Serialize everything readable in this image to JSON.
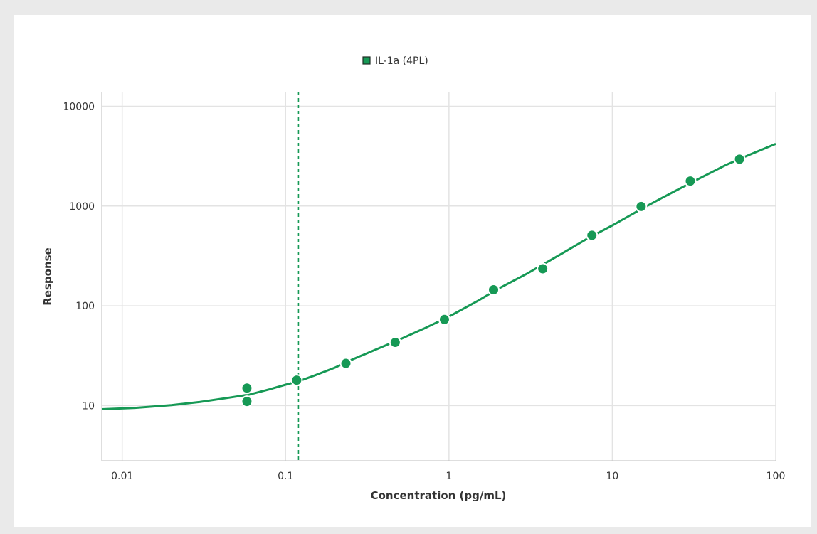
{
  "chart_data": {
    "type": "scatter",
    "legend": {
      "label": "IL-1a (4PL)",
      "position": "top-center"
    },
    "xlabel": "Concentration (pg/mL)",
    "ylabel": "Response",
    "x_scale": "log",
    "y_scale": "log",
    "xlim": [
      0.0075,
      100
    ],
    "ylim": [
      2.8,
      14000
    ],
    "grid": true,
    "x_ticks": [
      {
        "value": 0.01,
        "label": "0.01"
      },
      {
        "value": 0.1,
        "label": "0.1"
      },
      {
        "value": 1,
        "label": "1"
      },
      {
        "value": 10,
        "label": "10"
      },
      {
        "value": 100,
        "label": "100"
      }
    ],
    "y_ticks": [
      {
        "value": 10,
        "label": "10"
      },
      {
        "value": 100,
        "label": "100"
      },
      {
        "value": 1000,
        "label": "1000"
      },
      {
        "value": 10000,
        "label": "10000"
      }
    ],
    "series": [
      {
        "color": "#169955",
        "points": [
          {
            "x": 0.058,
            "y": 15
          },
          {
            "x": 0.058,
            "y": 11
          },
          {
            "x": 0.117,
            "y": 18
          },
          {
            "x": 0.234,
            "y": 26.5
          },
          {
            "x": 0.469,
            "y": 43
          },
          {
            "x": 0.938,
            "y": 73
          },
          {
            "x": 1.875,
            "y": 145
          },
          {
            "x": 3.75,
            "y": 235
          },
          {
            "x": 7.5,
            "y": 510
          },
          {
            "x": 15,
            "y": 990
          },
          {
            "x": 30,
            "y": 1780
          },
          {
            "x": 60,
            "y": 2950
          }
        ],
        "curve": [
          {
            "x": 0.0075,
            "y": 9.2
          },
          {
            "x": 0.012,
            "y": 9.5
          },
          {
            "x": 0.02,
            "y": 10.1
          },
          {
            "x": 0.03,
            "y": 10.9
          },
          {
            "x": 0.045,
            "y": 12
          },
          {
            "x": 0.06,
            "y": 12.9
          },
          {
            "x": 0.08,
            "y": 14.6
          },
          {
            "x": 0.1,
            "y": 16.2
          },
          {
            "x": 0.12,
            "y": 17.5
          },
          {
            "x": 0.15,
            "y": 20
          },
          {
            "x": 0.2,
            "y": 24
          },
          {
            "x": 0.25,
            "y": 28.5
          },
          {
            "x": 0.35,
            "y": 36
          },
          {
            "x": 0.5,
            "y": 46
          },
          {
            "x": 0.7,
            "y": 59
          },
          {
            "x": 1,
            "y": 78
          },
          {
            "x": 1.5,
            "y": 112
          },
          {
            "x": 2,
            "y": 148
          },
          {
            "x": 3,
            "y": 210
          },
          {
            "x": 5,
            "y": 340
          },
          {
            "x": 7,
            "y": 470
          },
          {
            "x": 10,
            "y": 640
          },
          {
            "x": 15,
            "y": 930
          },
          {
            "x": 20,
            "y": 1200
          },
          {
            "x": 30,
            "y": 1700
          },
          {
            "x": 50,
            "y": 2600
          },
          {
            "x": 70,
            "y": 3300
          },
          {
            "x": 100,
            "y": 4200
          }
        ]
      }
    ],
    "reference_line": {
      "x": 0.12,
      "style": "dashed",
      "color": "#169955"
    }
  }
}
